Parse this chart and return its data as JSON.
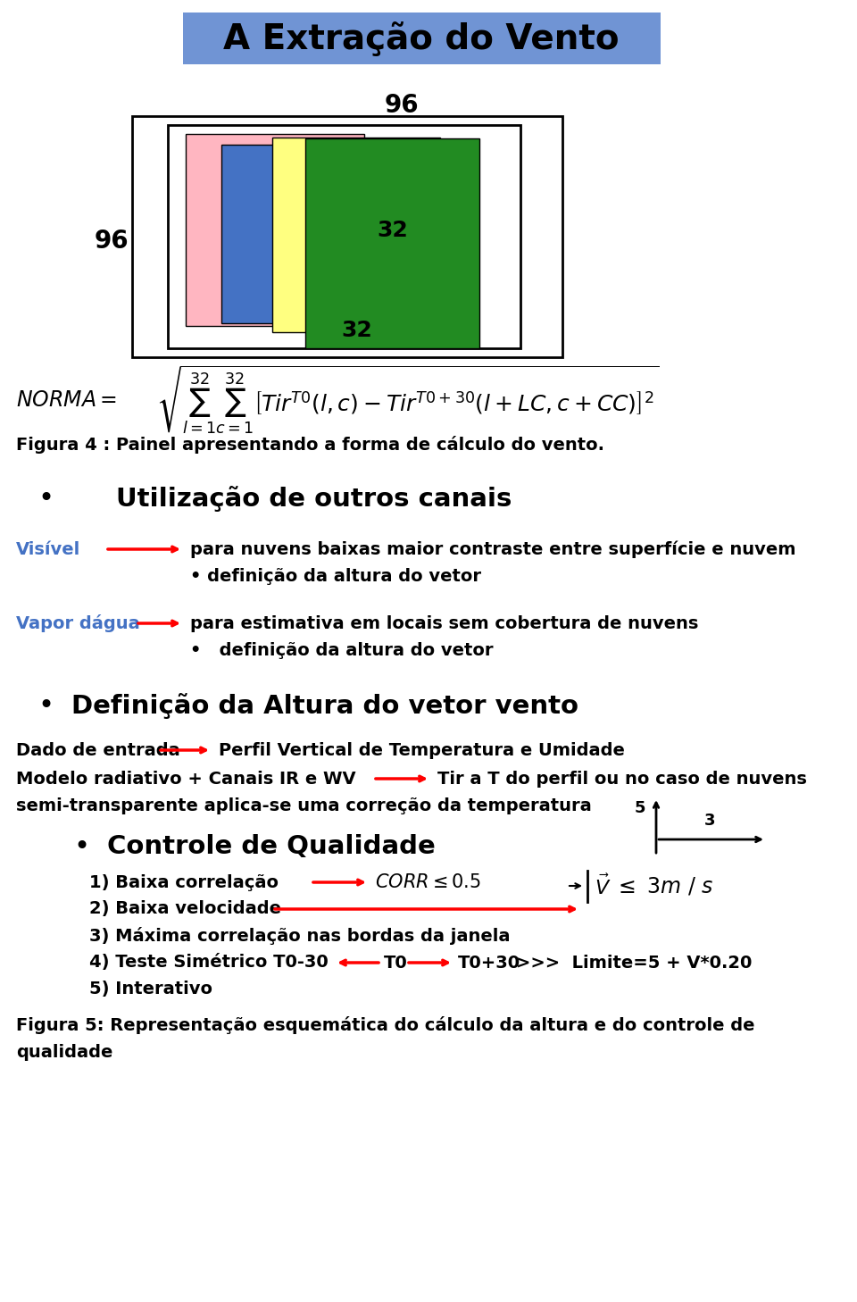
{
  "title": "A Extração do Vento",
  "title_bg": "#7094D4",
  "fig_bg": "#ffffff",
  "label_96_top": "96",
  "label_96_left": "96",
  "label_32_top": "32",
  "label_32_bottom": "32",
  "colors_rects": [
    "#FFB6C1",
    "#4472C4",
    "#FFFF80",
    "#228B22"
  ],
  "fig4_caption": "Figura 4 : Painel apresentando a forma de cálculo do vento.",
  "bullet1_title": "Utilização de outros canais",
  "visivel_label": "Visível",
  "visivel_text1": "para nuvens baixas maior contraste entre superfície e nuvem",
  "visivel_text2": "• definição da altura do vetor",
  "vapor_label": "Vapor dágua",
  "vapor_text1": "para estimativa em locais sem cobertura de nuvens",
  "vapor_text2": "•   definição da altura do vetor",
  "bullet2_title": "Definição da Altura do vetor vento",
  "dado_label": "Dado de entrada",
  "dado_arrow_text": "Perfil Vertical de Temperatura e Umidade",
  "modelo_text": "Modelo radiativo + Canais IR e WV",
  "modelo_arrow_text": "Tir a T do perfil ou no caso de nuvens",
  "semi_text": "semi-transparente aplica-se uma correção da temperatura",
  "bullet3_title": "Controle de Qualidade",
  "item1_text": "1) Baixa correlação",
  "item2_text": "2) Baixa velocidade",
  "item3_text": "3) Máxima correlação nas bordas da janela",
  "item4_text": "4) Teste Simétrico T0-30",
  "item4_t0": "T0",
  "item4_t030": "T0+30",
  "item4_rest": ">>>  Limite=5 + V*0.20",
  "item5_text": "5) Interativo",
  "fig5_caption": "Figura 5: Representação esquemática do cálculo da altura e do controle de qualidade"
}
